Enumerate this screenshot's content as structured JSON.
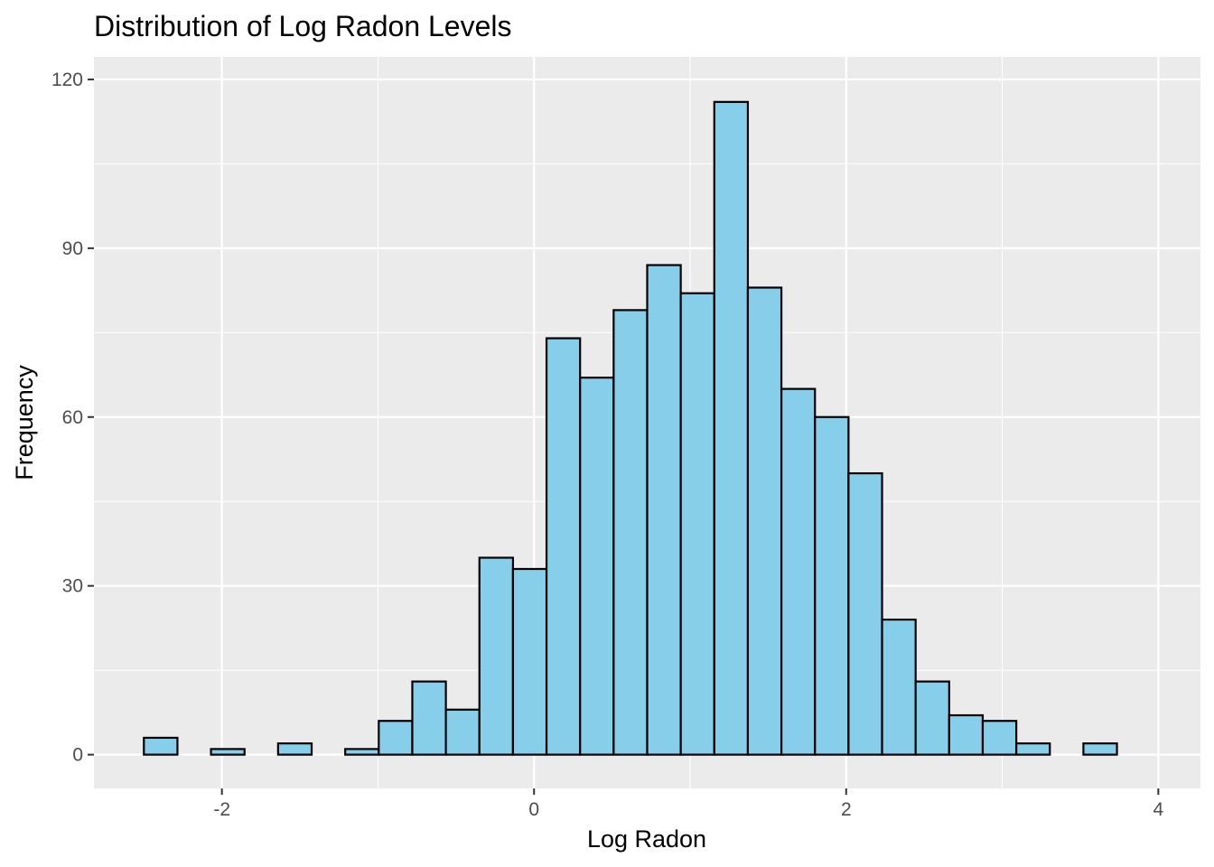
{
  "chart_data": {
    "type": "bar",
    "title": "Distribution of Log Radon Levels",
    "xlabel": "Log Radon",
    "ylabel": "Frequency",
    "bin_edges": [
      -2.5,
      -2.285,
      -2.07,
      -1.855,
      -1.64,
      -1.425,
      -1.21,
      -0.995,
      -0.78,
      -0.565,
      -0.35,
      -0.135,
      0.08,
      0.295,
      0.51,
      0.725,
      0.94,
      1.155,
      1.37,
      1.585,
      1.8,
      2.015,
      2.23,
      2.445,
      2.66,
      2.875,
      3.09,
      3.305,
      3.52,
      3.735,
      3.95
    ],
    "values": [
      3,
      0,
      1,
      0,
      2,
      0,
      1,
      6,
      13,
      8,
      35,
      33,
      74,
      67,
      79,
      87,
      82,
      116,
      83,
      65,
      60,
      50,
      24,
      13,
      7,
      6,
      2,
      0,
      2,
      0
    ],
    "xlim": [
      -2.82,
      4.27
    ],
    "ylim": [
      -6,
      124
    ],
    "x_ticks": [
      -2,
      0,
      2,
      4
    ],
    "x_tick_labels": [
      "-2",
      "0",
      "2",
      "4"
    ],
    "y_ticks": [
      0,
      30,
      60,
      90,
      120
    ],
    "y_tick_labels": [
      "0",
      "30",
      "60",
      "90",
      "120"
    ],
    "grid": true,
    "legend": "none",
    "colors": {
      "bar_fill": "#87CEEB",
      "bar_stroke": "#000000",
      "panel_background": "#EBEBEB",
      "grid": "#FFFFFF",
      "tick_text": "#4D4D4D"
    }
  }
}
